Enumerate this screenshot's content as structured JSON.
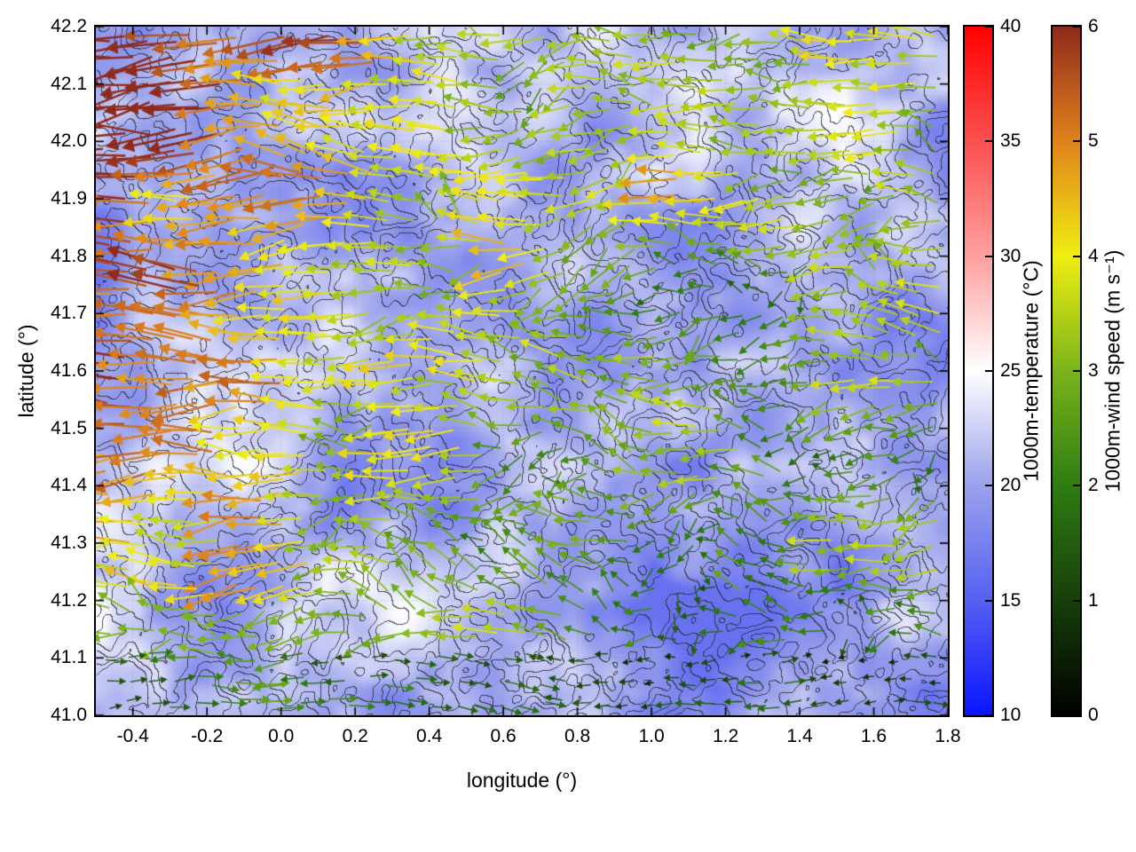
{
  "chart_data": {
    "type": "heatmap",
    "subtype": "geographic map with temperature heatmap background, terrain contour lines and wind vector arrows (quiver)",
    "title": "",
    "xlabel": "longitude (°)",
    "ylabel": "latitude (°)",
    "xlim": [
      -0.5,
      1.8
    ],
    "ylim": [
      41.0,
      42.2
    ],
    "xticks": [
      "-0.4",
      "-0.2",
      "0.0",
      "0.2",
      "0.4",
      "0.6",
      "0.8",
      "1.0",
      "1.2",
      "1.4",
      "1.6",
      "1.8"
    ],
    "yticks": [
      "41.0",
      "41.1",
      "41.2",
      "41.3",
      "41.4",
      "41.5",
      "41.6",
      "41.7",
      "41.8",
      "41.9",
      "42.0",
      "42.1",
      "42.2"
    ],
    "grid": "faint dotted grey gridlines at every tick",
    "heatmap": {
      "quantity": "1000m-temperature",
      "units": "°C",
      "range_displayed": [
        16,
        25
      ],
      "description": "Mostly light blue-violet shading (≈18–23 °C) with paler near-white patches (≈24–25 °C) and darker violet-blue pockets (≈16–18 °C)"
    },
    "vectors": {
      "quantity": "1000m-wind speed",
      "units": "m s⁻¹",
      "description": "Dense arrow field, predominantly westward-pointing; long dark-red 5–6 m/s arrows over the western half, yellow-orange 4–5 m/s bands through the centre and east, green 2–3 m/s and dark-green 1–2 m/s arrows scattered, short near-black <1 m/s arrows along the southern edge"
    },
    "contours": {
      "description": "Thin dark-grey terrain height contour lines drawn over the whole map"
    },
    "colorbars": [
      {
        "label": "1000m-temperature (°C)",
        "min": 10,
        "max": 40,
        "ticks": [
          "10",
          "15",
          "20",
          "25",
          "30",
          "35",
          "40"
        ],
        "stops": [
          {
            "v": 10,
            "c": "#0a14ff"
          },
          {
            "v": 15,
            "c": "#5560f2"
          },
          {
            "v": 20,
            "c": "#9aa1ec"
          },
          {
            "v": 25,
            "c": "#ffffff"
          },
          {
            "v": 30,
            "c": "#ff9f9f"
          },
          {
            "v": 35,
            "c": "#fb5050"
          },
          {
            "v": 40,
            "c": "#ff0000"
          }
        ]
      },
      {
        "label": "1000m-wind speed (m s⁻¹)",
        "min": 0,
        "max": 6,
        "ticks": [
          "0",
          "1",
          "2",
          "3",
          "4",
          "5",
          "6"
        ],
        "stops": [
          {
            "v": 0,
            "c": "#000000"
          },
          {
            "v": 1,
            "c": "#173f0a"
          },
          {
            "v": 2,
            "c": "#2e7c12"
          },
          {
            "v": 3,
            "c": "#7ab41a"
          },
          {
            "v": 4,
            "c": "#f0ee12"
          },
          {
            "v": 5,
            "c": "#e0821c"
          },
          {
            "v": 6,
            "c": "#8f2a1c"
          }
        ]
      }
    ]
  }
}
